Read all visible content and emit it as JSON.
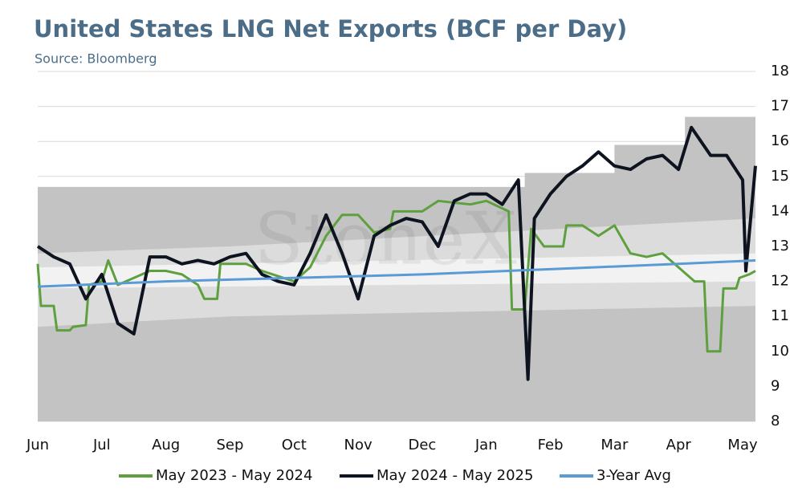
{
  "chart_data": {
    "type": "line",
    "title": "United States LNG Net Exports (BCF per Day)",
    "subtitle": "Source: Bloomberg",
    "watermark": "StoneX",
    "xlim": [
      0,
      11.2
    ],
    "xticks": [
      {
        "value": 0,
        "label": "Jun"
      },
      {
        "value": 1,
        "label": "Jul"
      },
      {
        "value": 2,
        "label": "Aug"
      },
      {
        "value": 3,
        "label": "Sep"
      },
      {
        "value": 4,
        "label": "Oct"
      },
      {
        "value": 5,
        "label": "Nov"
      },
      {
        "value": 6,
        "label": "Dec"
      },
      {
        "value": 7,
        "label": "Jan"
      },
      {
        "value": 8,
        "label": "Feb"
      },
      {
        "value": 9,
        "label": "Mar"
      },
      {
        "value": 10,
        "label": "Apr"
      },
      {
        "value": 11,
        "label": "May"
      }
    ],
    "ylim": [
      8,
      18
    ],
    "yticks": [
      8,
      9,
      10,
      11,
      12,
      13,
      14,
      15,
      16,
      17,
      18
    ],
    "grid": true,
    "bands": [
      {
        "color": "#c3c3c3",
        "x": [
          0,
          7.6,
          7.6,
          9.0,
          9.0,
          10.1,
          10.1,
          11.2
        ],
        "low": [
          8,
          8,
          8,
          8,
          8,
          8,
          8,
          8
        ],
        "high": [
          14.7,
          14.7,
          15.1,
          15.1,
          15.9,
          15.9,
          16.7,
          16.7
        ]
      },
      {
        "color": "#dcdcdc",
        "x": [
          0,
          3,
          11.2
        ],
        "low": [
          10.7,
          11.0,
          11.3
        ],
        "high": [
          12.8,
          13.0,
          13.8
        ]
      },
      {
        "color": "#f2f2f2",
        "x": [
          0,
          11.2
        ],
        "low": [
          11.8,
          12.0
        ],
        "high": [
          12.4,
          12.8
        ]
      }
    ],
    "series": [
      {
        "name": "May 2023 - May 2024",
        "color": "#5ea03f",
        "width": 3,
        "x": [
          0,
          0.05,
          0.25,
          0.3,
          0.5,
          0.55,
          0.75,
          0.8,
          1.0,
          1.1,
          1.25,
          1.75,
          2.0,
          2.25,
          2.5,
          2.6,
          2.8,
          2.85,
          3.25,
          3.5,
          4.0,
          4.25,
          4.5,
          4.75,
          5.0,
          5.25,
          5.5,
          5.55,
          6.0,
          6.25,
          6.75,
          7.0,
          7.35,
          7.4,
          7.6,
          7.7,
          7.9,
          8.2,
          8.25,
          8.5,
          8.75,
          9.0,
          9.25,
          9.5,
          9.75,
          10.0,
          10.25,
          10.4,
          10.45,
          10.65,
          10.7,
          10.9,
          10.95,
          11.1,
          11.2
        ],
        "values": [
          12.5,
          11.3,
          11.3,
          10.6,
          10.6,
          10.7,
          10.75,
          11.9,
          12.0,
          12.6,
          11.9,
          12.3,
          12.3,
          12.2,
          11.9,
          11.5,
          11.5,
          12.5,
          12.5,
          12.3,
          12.0,
          12.4,
          13.3,
          13.9,
          13.9,
          13.4,
          13.5,
          14.0,
          14.0,
          14.3,
          14.2,
          14.3,
          14.0,
          11.2,
          11.2,
          13.5,
          13.0,
          13.0,
          13.6,
          13.6,
          13.3,
          13.6,
          12.8,
          12.7,
          12.8,
          12.4,
          12.0,
          12.0,
          10.0,
          10.0,
          11.8,
          11.8,
          12.1,
          12.2,
          12.3
        ]
      },
      {
        "name": "May 2024 - May 2025",
        "color": "#0d1420",
        "width": 4,
        "x": [
          0,
          0.25,
          0.5,
          0.75,
          1.0,
          1.25,
          1.5,
          1.75,
          2.0,
          2.25,
          2.5,
          2.75,
          3.0,
          3.25,
          3.5,
          3.75,
          4.0,
          4.25,
          4.5,
          4.75,
          5.0,
          5.25,
          5.5,
          5.75,
          6.0,
          6.25,
          6.5,
          6.75,
          7.0,
          7.25,
          7.5,
          7.65,
          7.75,
          8.0,
          8.25,
          8.5,
          8.75,
          9.0,
          9.25,
          9.5,
          9.75,
          10.0,
          10.2,
          10.5,
          10.75,
          11.0,
          11.05,
          11.2
        ],
        "values": [
          13.0,
          12.7,
          12.5,
          11.5,
          12.2,
          10.8,
          10.5,
          12.7,
          12.7,
          12.5,
          12.6,
          12.5,
          12.7,
          12.8,
          12.2,
          12.0,
          11.9,
          12.8,
          13.9,
          12.8,
          11.5,
          13.3,
          13.6,
          13.8,
          13.7,
          13.0,
          14.3,
          14.5,
          14.5,
          14.2,
          14.9,
          9.2,
          13.8,
          14.5,
          15.0,
          15.3,
          15.7,
          15.3,
          15.2,
          15.5,
          15.6,
          15.2,
          16.4,
          15.6,
          15.6,
          14.9,
          12.3,
          15.3
        ]
      },
      {
        "name": "3-Year Avg",
        "color": "#5b9bd5",
        "width": 3,
        "x": [
          0,
          2,
          4,
          6,
          8,
          10,
          11.2
        ],
        "values": [
          11.85,
          12.0,
          12.1,
          12.2,
          12.35,
          12.5,
          12.6
        ]
      }
    ]
  }
}
